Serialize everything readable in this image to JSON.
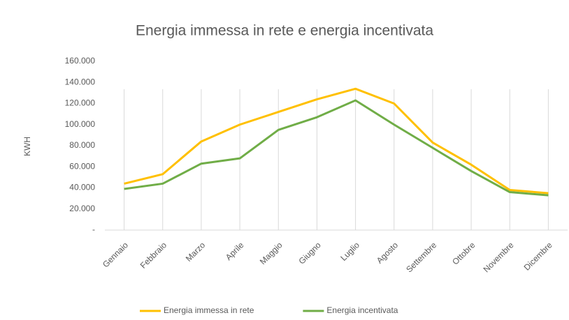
{
  "chart_data": {
    "type": "line",
    "title": "Energia immessa in rete e energia incentivata",
    "y_label": "KWH",
    "categories": [
      "Gennaio",
      "Febbraio",
      "Marzo",
      "Aprile",
      "Maggio",
      "Giugno",
      "Luglio",
      "Agosto",
      "Settembre",
      "Ottobre",
      "Novembre",
      "Dicembre"
    ],
    "series": [
      {
        "name": "Energia immessa in rete",
        "color": "#ffc000",
        "values": [
          44000,
          53000,
          84000,
          100000,
          112000,
          124000,
          134000,
          120000,
          83000,
          62000,
          38000,
          35000
        ]
      },
      {
        "name": "Energia incentivata",
        "color": "#70ad47",
        "values": [
          39000,
          44000,
          63000,
          68000,
          95000,
          107000,
          123000,
          100000,
          78000,
          56000,
          36000,
          33000
        ]
      }
    ],
    "ylim": [
      0,
      160000
    ],
    "yticks": [
      {
        "value": 0,
        "label": "-"
      },
      {
        "value": 20000,
        "label": "20.000"
      },
      {
        "value": 40000,
        "label": "40.000"
      },
      {
        "value": 60000,
        "label": "60.000"
      },
      {
        "value": 80000,
        "label": "80.000"
      },
      {
        "value": 100000,
        "label": "100.000"
      },
      {
        "value": 120000,
        "label": "120.000"
      },
      {
        "value": 140000,
        "label": "140.000"
      },
      {
        "value": 160000,
        "label": "160.000"
      }
    ],
    "grid": "x",
    "legend": "bottom"
  }
}
